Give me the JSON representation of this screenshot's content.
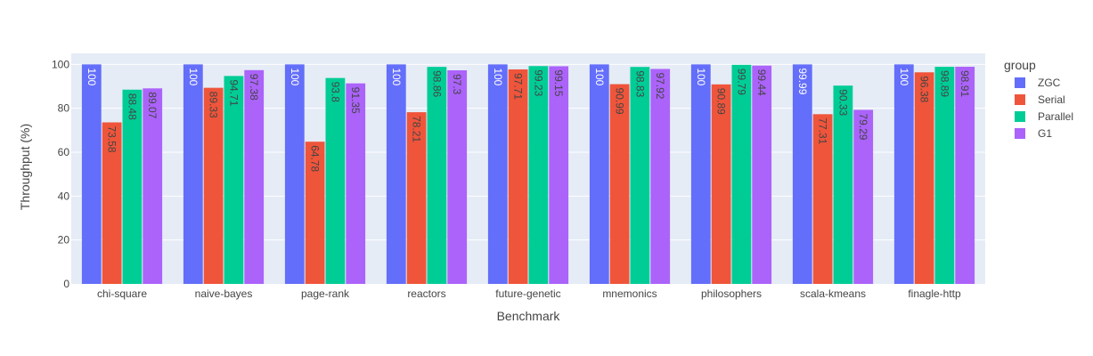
{
  "chart_data": {
    "type": "bar",
    "xlabel": "Benchmark",
    "ylabel": "Throughput (%)",
    "ylim": [
      0,
      105
    ],
    "yticks": [
      0,
      20,
      40,
      60,
      80,
      100
    ],
    "grid": true,
    "legend": {
      "title": "group",
      "placement": "right"
    },
    "categories": [
      "chi-square",
      "naive-bayes",
      "page-rank",
      "reactors",
      "future-genetic",
      "mnemonics",
      "philosophers",
      "scala-kmeans",
      "finagle-http"
    ],
    "series": [
      {
        "name": "ZGC",
        "color": "#636efa",
        "label_color": "#ffffff",
        "values": [
          100,
          100,
          100,
          100,
          100,
          100,
          100,
          99.99,
          100
        ]
      },
      {
        "name": "Serial",
        "color": "#ef553b",
        "label_color": "#444444",
        "values": [
          73.58,
          89.33,
          64.78,
          78.21,
          97.71,
          90.99,
          90.89,
          77.31,
          96.38
        ]
      },
      {
        "name": "Parallel",
        "color": "#00cc96",
        "label_color": "#444444",
        "values": [
          88.48,
          94.71,
          93.8,
          98.86,
          99.23,
          98.83,
          99.79,
          90.33,
          98.89
        ]
      },
      {
        "name": "G1",
        "color": "#ab63fa",
        "label_color": "#444444",
        "values": [
          89.07,
          97.38,
          91.35,
          97.3,
          99.15,
          97.92,
          99.44,
          79.29,
          98.91
        ]
      }
    ],
    "colors": {
      "plot_background": "#e5ecf6",
      "gridline": "#ffffff"
    }
  }
}
